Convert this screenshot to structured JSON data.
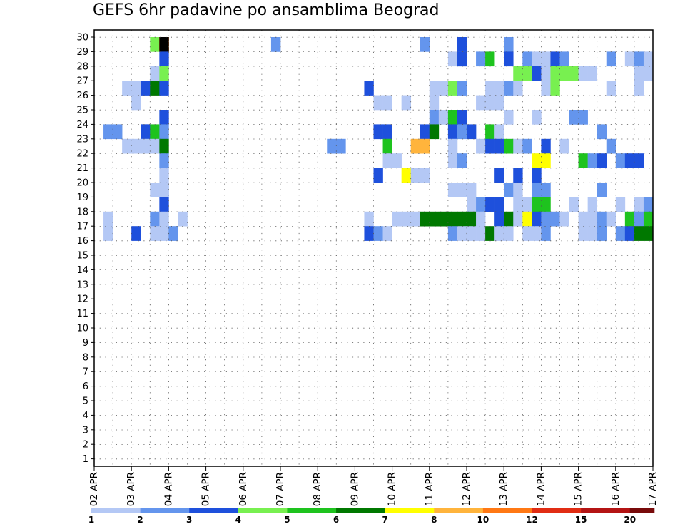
{
  "chart_data": {
    "type": "heatmap",
    "title": "GEFS 6hr padavine po ansamblima Beograd",
    "xlabel": "",
    "ylabel": "",
    "x_tick_labels": [
      "02 APR",
      "03 APR",
      "04 APR",
      "05 APR",
      "06 APR",
      "07 APR",
      "08 APR",
      "09 APR",
      "10 APR",
      "11 APR",
      "12 APR",
      "13 APR",
      "14 APR",
      "15 APR",
      "16 APR",
      "17 APR"
    ],
    "y_tick_labels": [
      "1",
      "2",
      "3",
      "4",
      "5",
      "6",
      "7",
      "8",
      "9",
      "10",
      "11",
      "12",
      "13",
      "14",
      "15",
      "16",
      "17",
      "18",
      "19",
      "20",
      "21",
      "22",
      "23",
      "24",
      "25",
      "26",
      "27",
      "28",
      "29",
      "30"
    ],
    "time_steps_per_day": 4,
    "x_range_steps": [
      0,
      60
    ],
    "y_range_members": [
      0,
      30
    ],
    "grid": "dotted",
    "legend": {
      "labels": [
        "1",
        "2",
        "3",
        "4",
        "5",
        "6",
        "7",
        "8",
        "10",
        "12",
        "15",
        "20"
      ],
      "colors": [
        "#b4c8f5",
        "#6495ed",
        "#1e50dc",
        "#78f050",
        "#1ec31e",
        "#007800",
        "#ffff00",
        "#ffb43c",
        "#ff7814",
        "#e12d14",
        "#b41414",
        "#780a0a"
      ]
    },
    "cells": [
      [
        7,
        0,
        1
      ],
      [
        6,
        0,
        4
      ],
      [
        7,
        0,
        7
      ],
      [
        7,
        0,
        9
      ],
      [
        7,
        0,
        10
      ],
      [
        7,
        0,
        14
      ],
      [
        19,
        0,
        1
      ],
      [
        19,
        0,
        2
      ],
      [
        35,
        0,
        2
      ],
      [
        39,
        0,
        2
      ],
      [
        39,
        0,
        3
      ],
      [
        44,
        0,
        2
      ],
      [
        7,
        1,
        3
      ],
      [
        38,
        1,
        1
      ],
      [
        39,
        1,
        2
      ],
      [
        39,
        1,
        3
      ],
      [
        41,
        1,
        2
      ],
      [
        42,
        1,
        5
      ],
      [
        44,
        1,
        3
      ],
      [
        46,
        1,
        2
      ],
      [
        47,
        1,
        1
      ],
      [
        48,
        1,
        1
      ],
      [
        49,
        1,
        3
      ],
      [
        50,
        1,
        2
      ],
      [
        55,
        1,
        2
      ],
      [
        57,
        1,
        1
      ],
      [
        58,
        1,
        2
      ],
      [
        59,
        1,
        1
      ],
      [
        6,
        2,
        1
      ],
      [
        7,
        2,
        4
      ],
      [
        45,
        2,
        4
      ],
      [
        46,
        2,
        4
      ],
      [
        47,
        2,
        3
      ],
      [
        48,
        2,
        1
      ],
      [
        49,
        2,
        4
      ],
      [
        50,
        2,
        4
      ],
      [
        51,
        2,
        4
      ],
      [
        52,
        2,
        1
      ],
      [
        53,
        2,
        1
      ],
      [
        58,
        2,
        1
      ],
      [
        59,
        2,
        1
      ],
      [
        60,
        2,
        2
      ],
      [
        3,
        3,
        1
      ],
      [
        4,
        3,
        1
      ],
      [
        5,
        3,
        3
      ],
      [
        6,
        3,
        6
      ],
      [
        7,
        3,
        3
      ],
      [
        29,
        3,
        3
      ],
      [
        36,
        3,
        1
      ],
      [
        37,
        3,
        1
      ],
      [
        38,
        3,
        4
      ],
      [
        39,
        3,
        2
      ],
      [
        42,
        3,
        1
      ],
      [
        43,
        3,
        1
      ],
      [
        44,
        3,
        2
      ],
      [
        45,
        3,
        1
      ],
      [
        48,
        3,
        1
      ],
      [
        49,
        3,
        4
      ],
      [
        55,
        3,
        1
      ],
      [
        58,
        3,
        1
      ],
      [
        4,
        4,
        1
      ],
      [
        30,
        4,
        1
      ],
      [
        31,
        4,
        1
      ],
      [
        33,
        4,
        1
      ],
      [
        36,
        4,
        1
      ],
      [
        41,
        4,
        1
      ],
      [
        42,
        4,
        1
      ],
      [
        43,
        4,
        1
      ],
      [
        7,
        5,
        3
      ],
      [
        36,
        5,
        2
      ],
      [
        37,
        5,
        1
      ],
      [
        38,
        5,
        5
      ],
      [
        39,
        5,
        3
      ],
      [
        44,
        5,
        1
      ],
      [
        47,
        5,
        1
      ],
      [
        51,
        5,
        2
      ],
      [
        52,
        5,
        2
      ],
      [
        1,
        6,
        2
      ],
      [
        2,
        6,
        2
      ],
      [
        5,
        6,
        3
      ],
      [
        5,
        6,
        3
      ],
      [
        6,
        6,
        5
      ],
      [
        7,
        6,
        2
      ],
      [
        30,
        6,
        3
      ],
      [
        31,
        6,
        3
      ],
      [
        35,
        6,
        3
      ],
      [
        36,
        6,
        6
      ],
      [
        38,
        6,
        3
      ],
      [
        39,
        6,
        2
      ],
      [
        40,
        6,
        3
      ],
      [
        42,
        6,
        5
      ],
      [
        43,
        6,
        1
      ],
      [
        54,
        6,
        2
      ],
      [
        3,
        7,
        1
      ],
      [
        4,
        7,
        1
      ],
      [
        5,
        7,
        1
      ],
      [
        6,
        7,
        1
      ],
      [
        7,
        7,
        6
      ],
      [
        25,
        7,
        2
      ],
      [
        26,
        7,
        2
      ],
      [
        31,
        7,
        5
      ],
      [
        34,
        7,
        8
      ],
      [
        35,
        7,
        8
      ],
      [
        38,
        7,
        1
      ],
      [
        41,
        7,
        1
      ],
      [
        42,
        7,
        3
      ],
      [
        43,
        7,
        3
      ],
      [
        44,
        7,
        5
      ],
      [
        45,
        7,
        1
      ],
      [
        46,
        7,
        2
      ],
      [
        48,
        7,
        3
      ],
      [
        50,
        7,
        1
      ],
      [
        55,
        7,
        2
      ],
      [
        7,
        8,
        2
      ],
      [
        31,
        8,
        1
      ],
      [
        32,
        8,
        1
      ],
      [
        38,
        8,
        1
      ],
      [
        39,
        8,
        2
      ],
      [
        47,
        8,
        7
      ],
      [
        48,
        8,
        7
      ],
      [
        52,
        8,
        5
      ],
      [
        53,
        8,
        2
      ],
      [
        54,
        8,
        3
      ],
      [
        56,
        8,
        2
      ],
      [
        57,
        8,
        3
      ],
      [
        58,
        8,
        3
      ],
      [
        7,
        9,
        1
      ],
      [
        30,
        9,
        3
      ],
      [
        33,
        9,
        7
      ],
      [
        34,
        9,
        1
      ],
      [
        35,
        9,
        1
      ],
      [
        43,
        9,
        3
      ],
      [
        45,
        9,
        3
      ],
      [
        47,
        9,
        3
      ],
      [
        7,
        10,
        2
      ],
      [
        6,
        10,
        1
      ],
      [
        7,
        10,
        1
      ],
      [
        38,
        10,
        1
      ],
      [
        39,
        10,
        1
      ],
      [
        40,
        10,
        1
      ],
      [
        44,
        10,
        2
      ],
      [
        45,
        10,
        1
      ],
      [
        47,
        10,
        2
      ],
      [
        48,
        10,
        2
      ],
      [
        54,
        10,
        2
      ],
      [
        7,
        11,
        3
      ],
      [
        40,
        11,
        1
      ],
      [
        41,
        11,
        2
      ],
      [
        42,
        11,
        3
      ],
      [
        43,
        11,
        3
      ],
      [
        45,
        11,
        1
      ],
      [
        46,
        11,
        1
      ],
      [
        47,
        11,
        5
      ],
      [
        48,
        11,
        5
      ],
      [
        51,
        11,
        1
      ],
      [
        53,
        11,
        1
      ],
      [
        56,
        11,
        1
      ],
      [
        58,
        11,
        1
      ],
      [
        59,
        11,
        2
      ],
      [
        1,
        12,
        1
      ],
      [
        6,
        12,
        2
      ],
      [
        7,
        12,
        1
      ],
      [
        9,
        12,
        1
      ],
      [
        29,
        12,
        1
      ],
      [
        32,
        12,
        1
      ],
      [
        33,
        12,
        1
      ],
      [
        34,
        12,
        1
      ],
      [
        35,
        12,
        6
      ],
      [
        36,
        12,
        6
      ],
      [
        37,
        12,
        6
      ],
      [
        38,
        12,
        6
      ],
      [
        39,
        12,
        6
      ],
      [
        40,
        12,
        6
      ],
      [
        41,
        12,
        1
      ],
      [
        43,
        12,
        3
      ],
      [
        44,
        12,
        6
      ],
      [
        45,
        12,
        1
      ],
      [
        46,
        12,
        7
      ],
      [
        47,
        12,
        3
      ],
      [
        48,
        12,
        2
      ],
      [
        49,
        12,
        2
      ],
      [
        50,
        12,
        1
      ],
      [
        52,
        12,
        1
      ],
      [
        53,
        12,
        1
      ],
      [
        54,
        12,
        2
      ],
      [
        55,
        12,
        1
      ],
      [
        57,
        12,
        5
      ],
      [
        58,
        12,
        2
      ],
      [
        59,
        12,
        5
      ],
      [
        1,
        13,
        1
      ],
      [
        4,
        13,
        3
      ],
      [
        6,
        13,
        1
      ],
      [
        7,
        13,
        1
      ],
      [
        8,
        13,
        2
      ],
      [
        29,
        13,
        3
      ],
      [
        30,
        13,
        2
      ],
      [
        31,
        13,
        1
      ],
      [
        38,
        13,
        2
      ],
      [
        39,
        13,
        1
      ],
      [
        40,
        13,
        1
      ],
      [
        41,
        13,
        1
      ],
      [
        42,
        13,
        6
      ],
      [
        43,
        13,
        1
      ],
      [
        44,
        13,
        1
      ],
      [
        46,
        13,
        1
      ],
      [
        47,
        13,
        1
      ],
      [
        48,
        13,
        2
      ],
      [
        52,
        13,
        1
      ],
      [
        53,
        13,
        1
      ],
      [
        54,
        13,
        2
      ],
      [
        56,
        13,
        2
      ],
      [
        57,
        13,
        3
      ],
      [
        58,
        13,
        6
      ],
      [
        59,
        13,
        6
      ]
    ]
  },
  "colorbar_ticks": [
    "1",
    "2",
    "3",
    "4",
    "5",
    "6",
    "7",
    "8",
    "10",
    "12",
    "15",
    "20"
  ]
}
